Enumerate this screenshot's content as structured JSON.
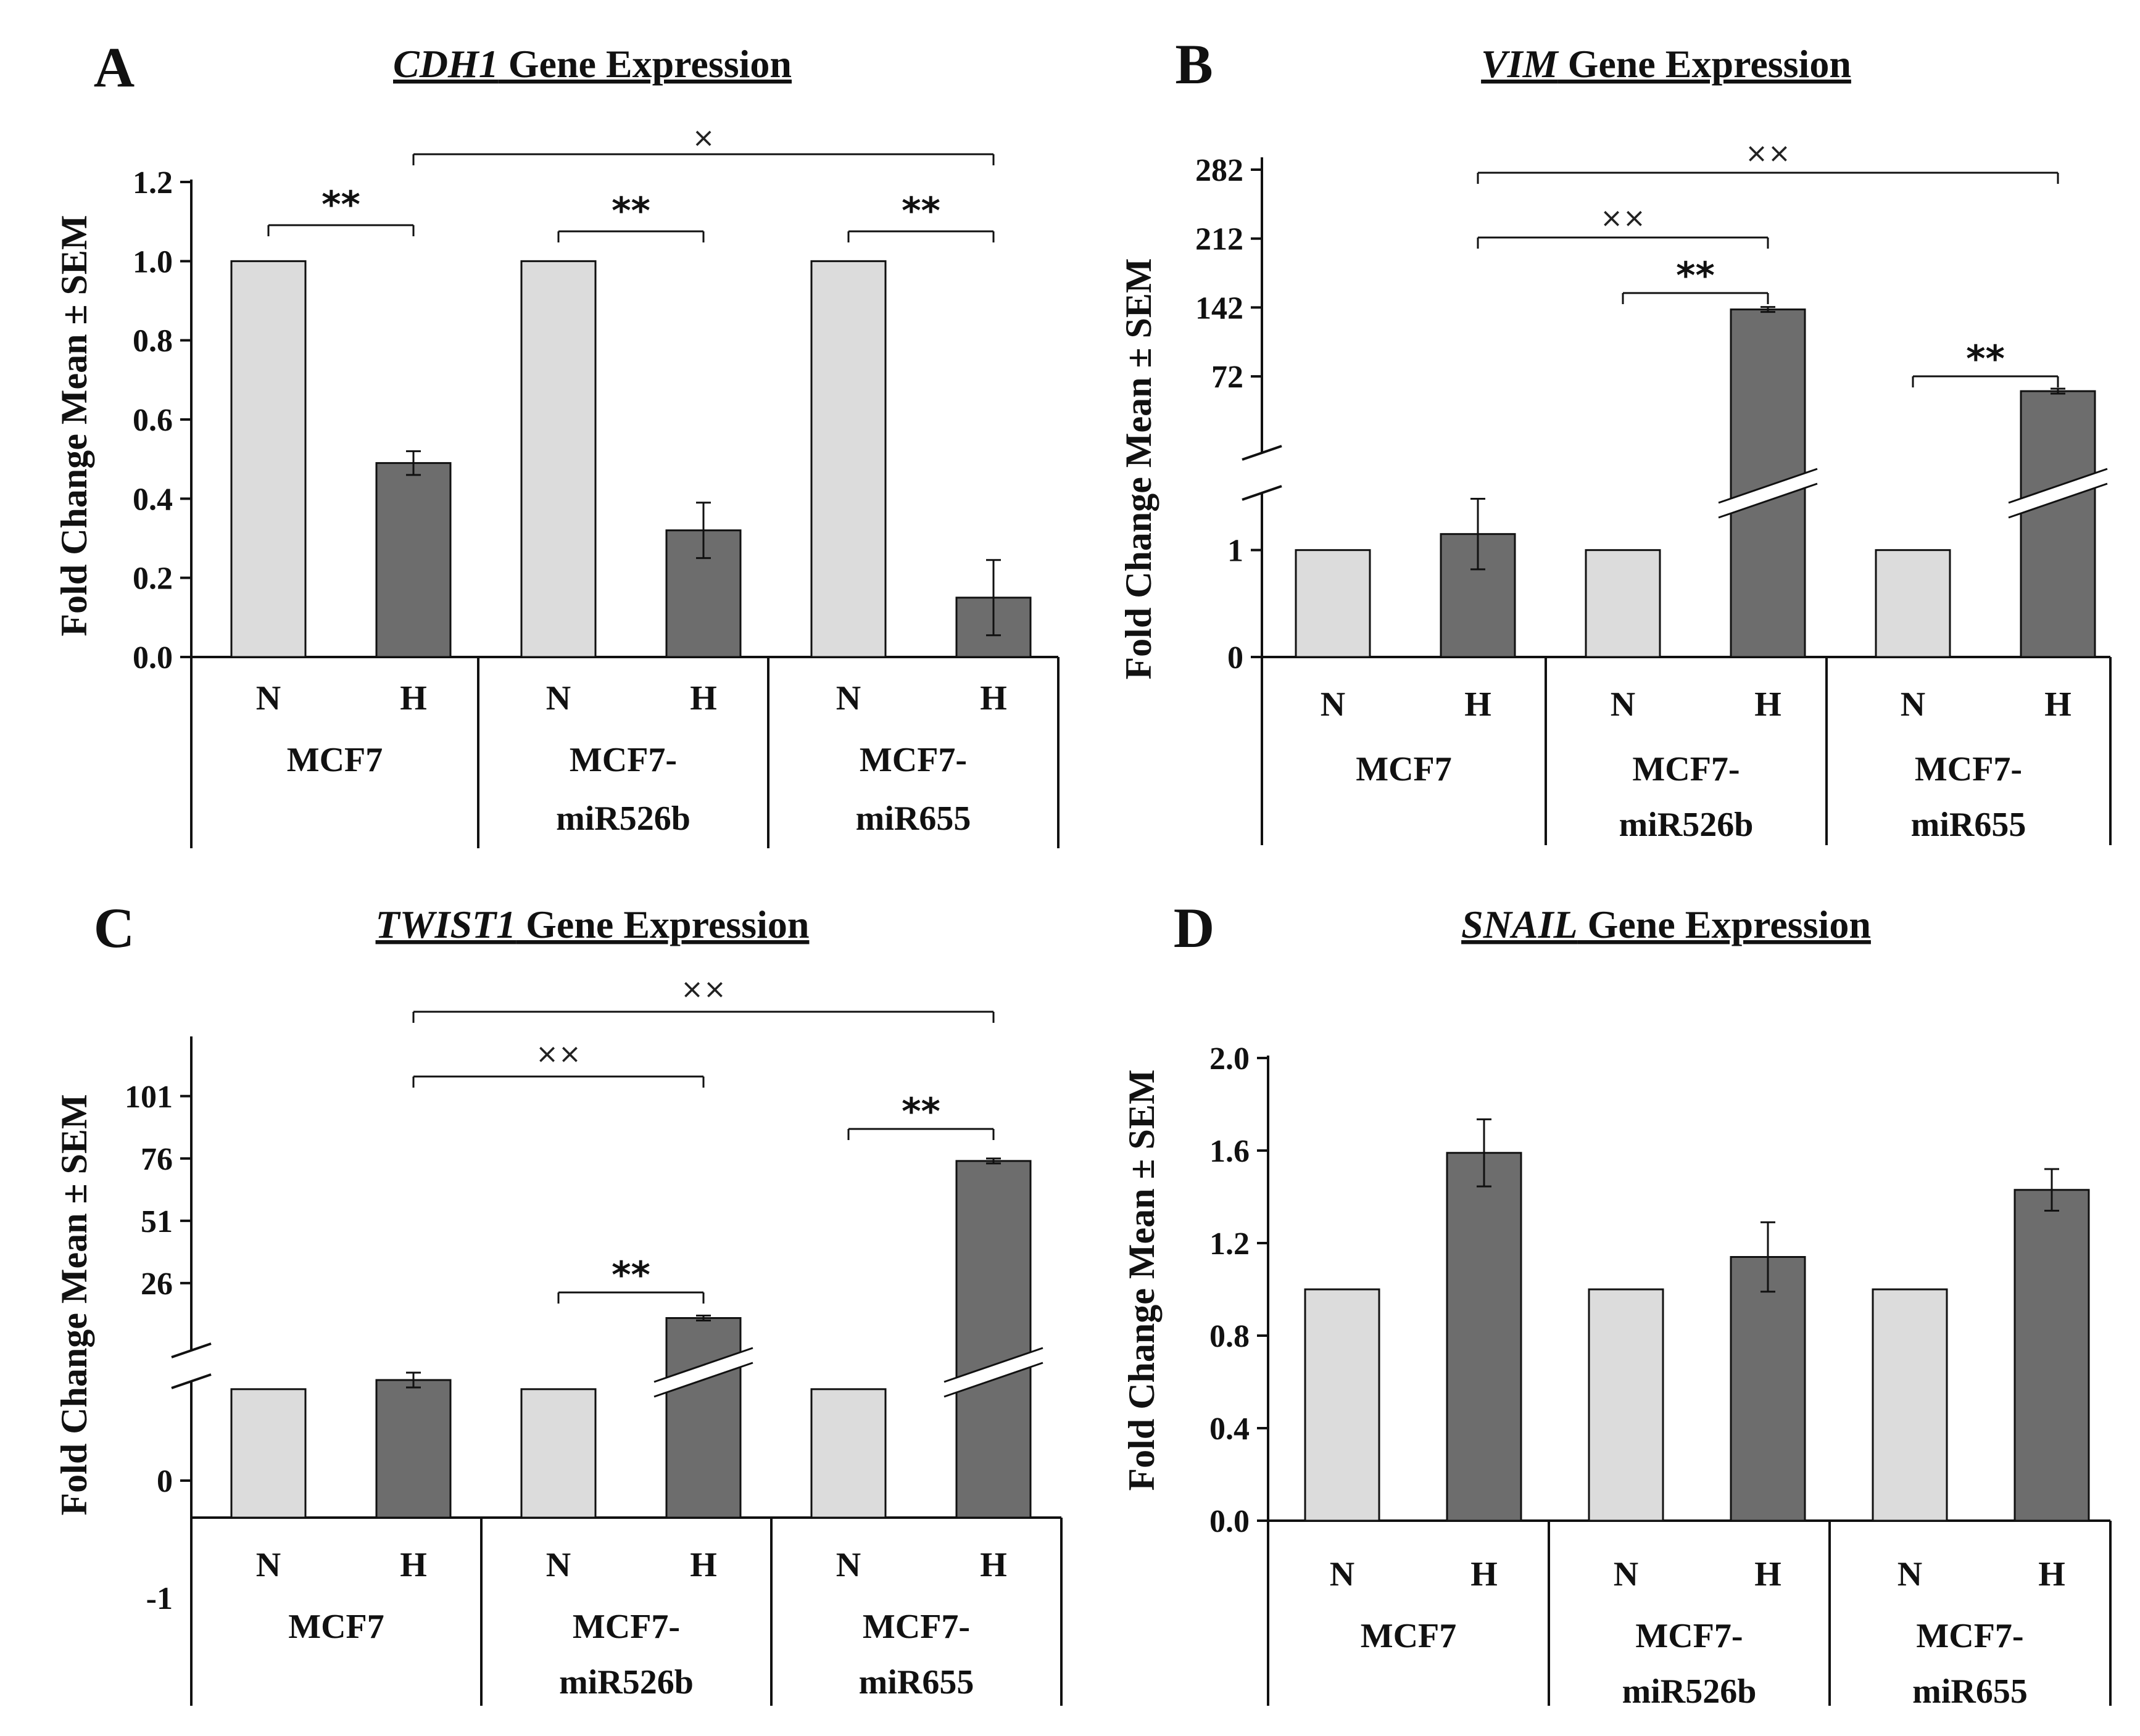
{
  "colors": {
    "normoxia_bar": "#dcdcdc",
    "hypoxia_bar": "#6d6d6d",
    "outline": "#111111"
  },
  "chart_data": [
    {
      "panel": "A",
      "type": "bar",
      "title_italic": "CDH1",
      "title_rest": " Gene Expression",
      "ylabel": "Fold Change  Mean ± SEM",
      "ylim": [
        0,
        1.2
      ],
      "yticks": [
        "0.0",
        "0.2",
        "0.4",
        "0.6",
        "0.8",
        "1.0",
        "1.2"
      ],
      "groups": [
        [
          "MCF7"
        ],
        [
          "MCF7-",
          "miR526b"
        ],
        [
          "MCF7-",
          "miR655"
        ]
      ],
      "conditions": [
        "N",
        "H"
      ],
      "values": [
        1.0,
        0.49,
        1.0,
        0.32,
        1.0,
        0.15
      ],
      "errors": [
        0,
        0.03,
        0,
        0.07,
        0,
        0.095
      ],
      "brackets": [
        {
          "from": 0,
          "to": 1,
          "label": "**"
        },
        {
          "from": 2,
          "to": 3,
          "label": "**"
        },
        {
          "from": 4,
          "to": 5,
          "label": "**"
        },
        {
          "from": 1,
          "to": 5,
          "label": "×"
        }
      ]
    },
    {
      "panel": "B",
      "type": "bar",
      "title_italic": "VIM",
      "title_rest": " Gene Expression",
      "ylabel": "Fold Change  Mean ± SEM",
      "broken_axis": true,
      "ylim_lower": [
        0,
        1.5
      ],
      "yticks_lower": [
        "0",
        "1"
      ],
      "ylim_upper": [
        0,
        282
      ],
      "yticks_upper": [
        "72",
        "142",
        "212",
        "282"
      ],
      "groups": [
        [
          "MCF7"
        ],
        [
          "MCF7-",
          "miR526b"
        ],
        [
          "MCF7-",
          "miR655"
        ]
      ],
      "conditions": [
        "N",
        "H"
      ],
      "values": [
        1.0,
        1.15,
        1.0,
        140,
        1.0,
        57
      ],
      "errors": [
        0,
        0.33,
        0,
        0.5,
        0,
        1.5
      ],
      "brackets": [
        {
          "from": 2,
          "to": 3,
          "label": "**"
        },
        {
          "from": 4,
          "to": 5,
          "label": "**"
        },
        {
          "from": 1,
          "to": 3,
          "label": "××"
        },
        {
          "from": 1,
          "to": 5,
          "label": "××"
        }
      ]
    },
    {
      "panel": "C",
      "type": "bar",
      "title_italic": "TWIST1",
      "title_rest": " Gene Expression",
      "ylabel": "Fold Change  Mean ± SEM",
      "broken_axis": true,
      "ylim_lower": [
        -1.5,
        1.1
      ],
      "yticks_lower": [
        "-1",
        "0"
      ],
      "ylim_upper": [
        0,
        120
      ],
      "yticks_upper": [
        "26",
        "51",
        "76",
        "101"
      ],
      "groups": [
        [
          "MCF7"
        ],
        [
          "MCF7-",
          "miR526b"
        ],
        [
          "MCF7-",
          "miR655"
        ]
      ],
      "conditions": [
        "N",
        "H"
      ],
      "values": [
        1.0,
        1.1,
        1.0,
        12,
        1.0,
        75
      ],
      "errors": [
        0,
        0.05,
        0,
        0.2,
        0,
        0.3
      ],
      "brackets": [
        {
          "from": 2,
          "to": 3,
          "label": "**"
        },
        {
          "from": 4,
          "to": 5,
          "label": "**"
        },
        {
          "from": 1,
          "to": 3,
          "label": "××"
        },
        {
          "from": 1,
          "to": 5,
          "label": "××"
        }
      ]
    },
    {
      "panel": "D",
      "type": "bar",
      "title_italic": "SNAIL",
      "title_rest": " Gene Expression",
      "ylabel": "Fold Change  Mean ± SEM",
      "ylim": [
        0,
        2.0
      ],
      "yticks": [
        "0.0",
        "0.4",
        "0.8",
        "1.2",
        "1.6",
        "2.0"
      ],
      "groups": [
        [
          "MCF7"
        ],
        [
          "MCF7-",
          "miR526b"
        ],
        [
          "MCF7-",
          "miR655"
        ]
      ],
      "conditions": [
        "N",
        "H"
      ],
      "values": [
        1.0,
        1.59,
        1.0,
        1.14,
        1.0,
        1.43
      ],
      "errors": [
        0,
        0.145,
        0,
        0.15,
        0,
        0.09
      ],
      "brackets": []
    }
  ]
}
